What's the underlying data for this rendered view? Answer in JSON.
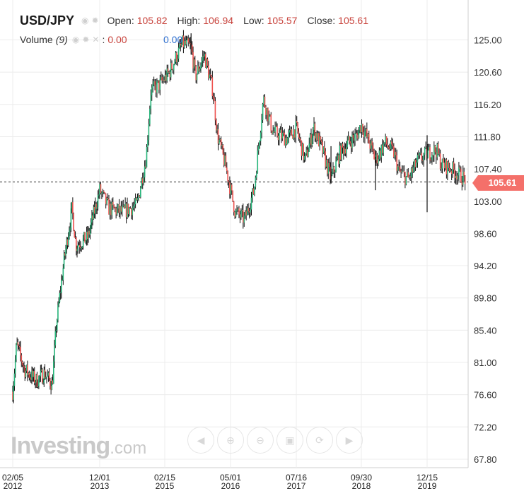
{
  "header": {
    "symbol": "USD/JPY",
    "open_label": "Open:",
    "open": "105.82",
    "high_label": "High:",
    "high": "106.94",
    "low_label": "Low:",
    "low": "105.57",
    "close_label": "Close:",
    "close": "105.61"
  },
  "volume": {
    "label": "Volume",
    "period": "(9)",
    "value1": "0.00",
    "value2": "0.00"
  },
  "last_price_tag": "105.61",
  "logo": {
    "word": "Investing",
    "suffix": ".com"
  },
  "nav_icons": [
    "scroll-left-icon",
    "zoom-in-icon",
    "zoom-out-icon",
    "zoom-fit-icon",
    "reset-icon",
    "scroll-right-icon"
  ],
  "colors": {
    "up": "#27b57a",
    "down": "#ef5350",
    "wick": "#111111",
    "price_tag": "#f4706a",
    "grid": "#ececec"
  },
  "chart_data": {
    "type": "candlestick",
    "ylim": [
      64.5,
      127.0
    ],
    "y_ticks": [
      "125.00",
      "120.60",
      "116.20",
      "111.80",
      "107.40",
      "103.00",
      "98.60",
      "94.20",
      "89.80",
      "85.40",
      "81.00",
      "76.60",
      "72.20",
      "67.80"
    ],
    "x_ticks": [
      {
        "line1": "02/05",
        "line2": "2012"
      },
      {
        "line1": "12/01",
        "line2": "2013"
      },
      {
        "line1": "02/15",
        "line2": "2015"
      },
      {
        "line1": "05/01",
        "line2": "2016"
      },
      {
        "line1": "07/16",
        "line2": "2017"
      },
      {
        "line1": "09/30",
        "line2": "2018"
      },
      {
        "line1": "12/15",
        "line2": "2019"
      }
    ],
    "last_close": 105.61,
    "approx_path": [
      [
        "2012-02",
        77.0
      ],
      [
        "2012-03",
        83.5
      ],
      [
        "2012-05",
        80.0
      ],
      [
        "2012-08",
        78.5
      ],
      [
        "2012-10",
        79.5
      ],
      [
        "2012-12",
        78.0
      ],
      [
        "2013-01",
        86.0
      ],
      [
        "2013-03",
        95.0
      ],
      [
        "2013-05",
        102.0
      ],
      [
        "2013-06",
        97.0
      ],
      [
        "2013-09",
        98.0
      ],
      [
        "2013-12",
        104.5
      ],
      [
        "2014-02",
        102.0
      ],
      [
        "2014-05",
        101.5
      ],
      [
        "2014-08",
        102.5
      ],
      [
        "2014-10",
        109.0
      ],
      [
        "2014-11",
        118.0
      ],
      [
        "2015-01",
        119.0
      ],
      [
        "2015-03",
        120.5
      ],
      [
        "2015-06",
        124.5
      ],
      [
        "2015-08",
        124.0
      ],
      [
        "2015-09",
        120.0
      ],
      [
        "2015-11",
        123.0
      ],
      [
        "2016-01",
        118.0
      ],
      [
        "2016-02",
        112.0
      ],
      [
        "2016-04",
        107.5
      ],
      [
        "2016-06",
        101.5
      ],
      [
        "2016-08",
        100.5
      ],
      [
        "2016-10",
        104.5
      ],
      [
        "2016-12",
        117.0
      ],
      [
        "2017-02",
        112.5
      ],
      [
        "2017-05",
        111.5
      ],
      [
        "2017-07",
        113.0
      ],
      [
        "2017-09",
        108.5
      ],
      [
        "2017-11",
        113.0
      ],
      [
        "2018-01",
        110.0
      ],
      [
        "2018-03",
        106.0
      ],
      [
        "2018-05",
        109.5
      ],
      [
        "2018-07",
        111.0
      ],
      [
        "2018-09",
        112.0
      ],
      [
        "2018-10",
        113.5
      ],
      [
        "2018-12",
        110.5
      ],
      [
        "2019-01",
        108.5
      ],
      [
        "2019-03",
        111.0
      ],
      [
        "2019-05",
        109.5
      ],
      [
        "2019-06",
        107.0
      ],
      [
        "2019-08",
        106.0
      ],
      [
        "2019-10",
        108.5
      ],
      [
        "2019-12",
        109.5
      ],
      [
        "2020-02",
        110.0
      ],
      [
        "2020-03",
        108.0
      ],
      [
        "2020-05",
        107.5
      ],
      [
        "2020-07",
        106.5
      ],
      [
        "2020-09",
        105.6
      ]
    ]
  }
}
